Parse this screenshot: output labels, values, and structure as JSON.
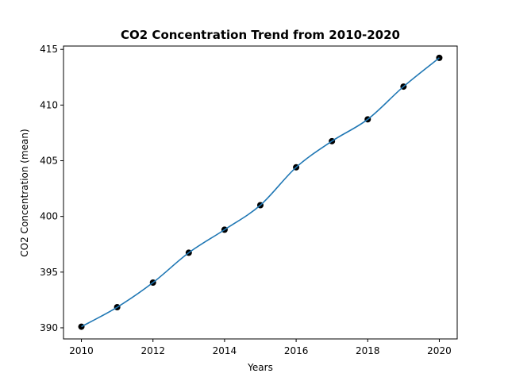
{
  "chart_data": {
    "type": "line",
    "title": "CO2 Concentration Trend from 2010-2020",
    "xlabel": "Years",
    "ylabel": "CO2 Concentration (mean)",
    "x": [
      2010,
      2011,
      2012,
      2013,
      2014,
      2015,
      2016,
      2017,
      2018,
      2019,
      2020
    ],
    "y": [
      390.1,
      391.85,
      394.06,
      396.74,
      398.81,
      401.01,
      404.41,
      406.76,
      408.72,
      411.66,
      414.24
    ],
    "xlim": [
      2009.5,
      2020.5
    ],
    "ylim": [
      389.0,
      415.3
    ],
    "xticks": [
      2010,
      2012,
      2014,
      2016,
      2018,
      2020
    ],
    "yticks": [
      390,
      395,
      400,
      405,
      410,
      415
    ],
    "grid": false,
    "line_color": "#1f77b4",
    "marker_color": "#000000"
  }
}
